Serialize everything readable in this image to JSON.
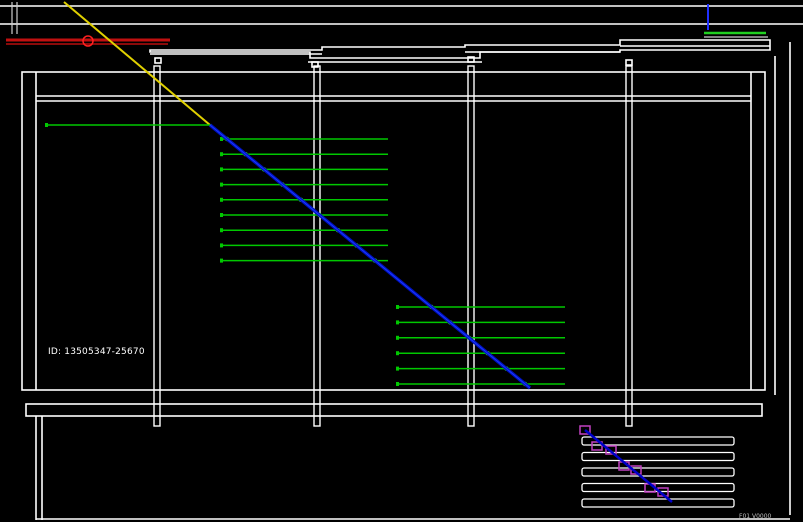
{
  "view": {
    "background": "#000000",
    "stroke_color": "#ffffff",
    "tendon_color": "#00c800",
    "path_color": "#0000c8",
    "incident_color": "#e0d000",
    "highlight_color": "#c040c0"
  },
  "frame": {
    "id_label": "ID: 13505347-25670"
  },
  "legend": {
    "corner_text": "F01 V0000"
  },
  "diagram": {
    "upper_tendon_count": 9,
    "lower_tendon_count": 6,
    "support_post_count": 4,
    "lower_panel_bar_count": 5
  }
}
